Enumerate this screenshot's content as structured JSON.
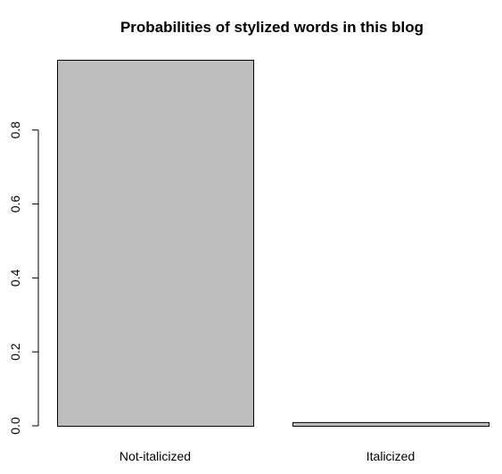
{
  "chart_data": {
    "type": "bar",
    "title": "Probabilities of stylized words in this blog",
    "categories": [
      "Not-italicized",
      "Italicized"
    ],
    "values": [
      0.99,
      0.01
    ],
    "ylim": [
      0,
      0.99
    ],
    "yticks": [
      0.0,
      0.2,
      0.4,
      0.6,
      0.8
    ],
    "ytick_labels": [
      "0.0",
      "0.2",
      "0.4",
      "0.6",
      "0.8"
    ],
    "xlabel": "",
    "ylabel": "",
    "grid": false,
    "colors": {
      "bar_fill": "#bebebe",
      "bar_stroke": "#000000",
      "axis": "#000000",
      "text": "#000000"
    }
  }
}
